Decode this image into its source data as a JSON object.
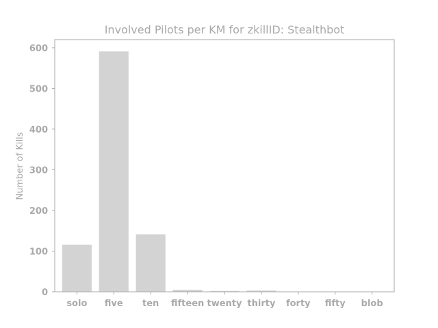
{
  "chart_data": {
    "type": "bar",
    "title": "Involved Pilots per KM for zkillID: Stealthbot",
    "xlabel": "",
    "ylabel": "Number of Kills",
    "categories": [
      "solo",
      "five",
      "ten",
      "fifteen",
      "twenty",
      "thirty",
      "forty",
      "fifty",
      "blob"
    ],
    "values": [
      116,
      591,
      141,
      5,
      2,
      3,
      0,
      0,
      0
    ],
    "ylim": [
      0,
      620
    ],
    "yticks": [
      0,
      100,
      200,
      300,
      400,
      500,
      600
    ],
    "grid": false,
    "bar_color": "#d3d3d3",
    "text_color": "#aaaaaa",
    "axis_color": "#aaaaaa"
  }
}
